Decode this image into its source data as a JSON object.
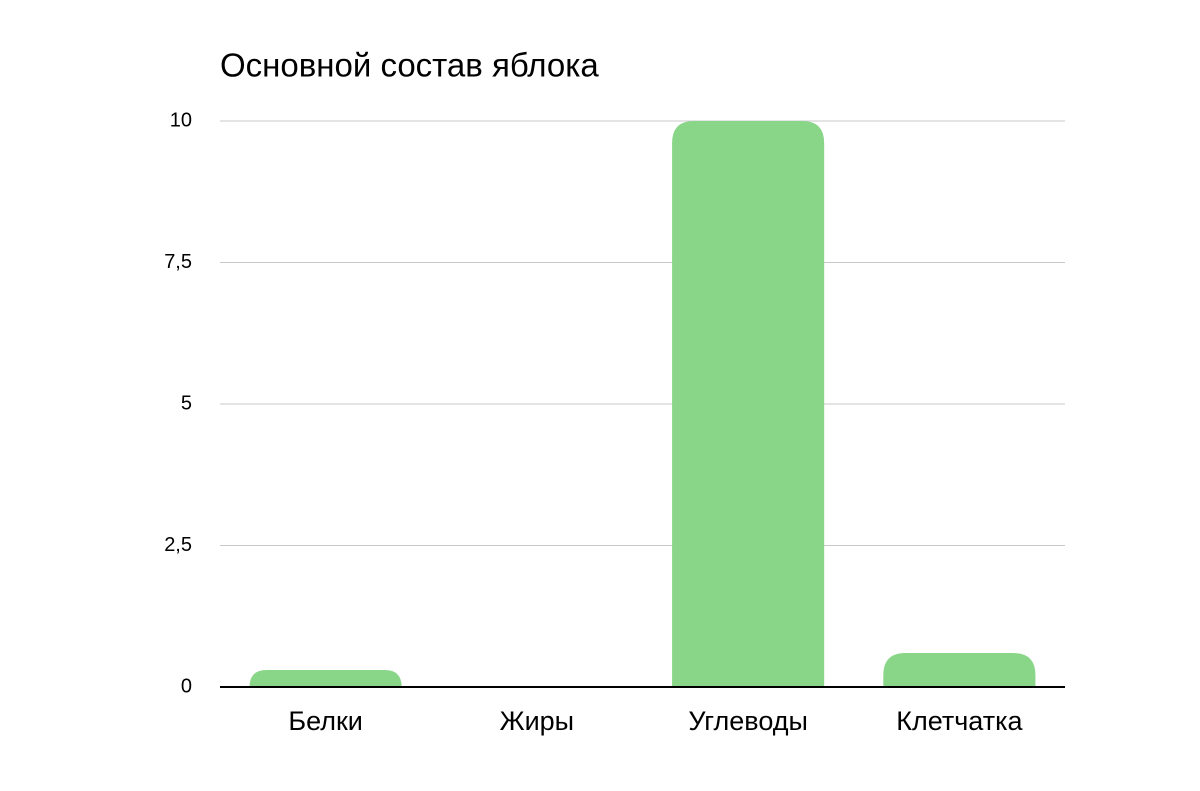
{
  "chart_data": {
    "type": "bar",
    "title": "Основной состав яблока",
    "categories": [
      "Белки",
      "Жиры",
      "Углеводы",
      "Клетчатка"
    ],
    "values": [
      0.3,
      0,
      10,
      0.6
    ],
    "color": "#8ad689",
    "ylim": [
      0,
      10
    ],
    "yticks": [
      0,
      {
        "value": 2.5,
        "label": "2,5"
      },
      5,
      {
        "value": 7.5,
        "label": "7,5"
      },
      10
    ],
    "grid": true
  }
}
